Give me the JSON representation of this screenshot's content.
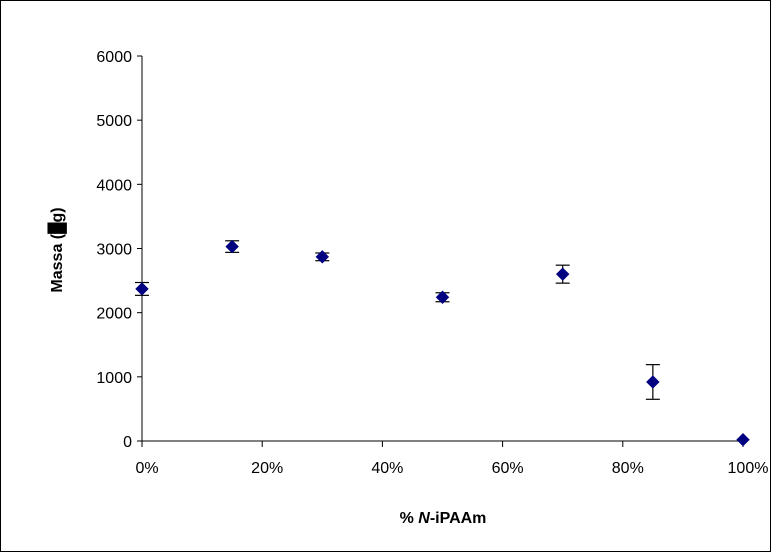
{
  "chart_data": {
    "type": "scatter",
    "title": "",
    "xlabel_prefix": "% ",
    "xlabel_italic": "N",
    "xlabel_suffix": "-iPAAm",
    "ylabel": "Massa (",
    "ylabel_end": "g)",
    "x_ticks": [
      "0%",
      "20%",
      "40%",
      "60%",
      "80%",
      "100%"
    ],
    "y_ticks": [
      "0",
      "1000",
      "2000",
      "3000",
      "4000",
      "5000",
      "6000"
    ],
    "xlim": [
      0,
      100
    ],
    "ylim": [
      0,
      6000
    ],
    "grid": false,
    "marker_color": "#000080",
    "series": [
      {
        "x": [
          0,
          15,
          30,
          50,
          70,
          85,
          100
        ],
        "y": [
          2370,
          3030,
          2870,
          2240,
          2600,
          920,
          20
        ],
        "error": [
          100,
          90,
          60,
          70,
          140,
          270,
          0
        ]
      }
    ]
  }
}
